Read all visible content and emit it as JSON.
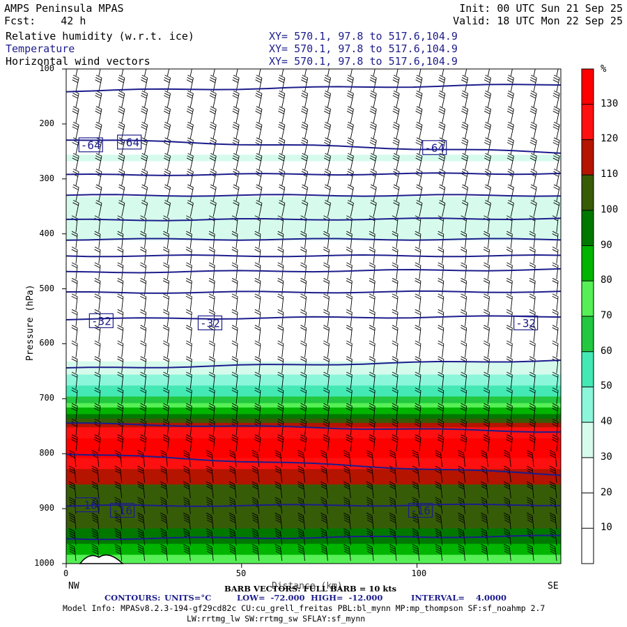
{
  "header": {
    "title": "AMPS Peninsula MPAS",
    "forecast": "Fcst:    42 h",
    "init": "Init: 00 UTC Sun 21 Sep 25",
    "valid": "Valid: 18 UTC Mon 22 Sep 25",
    "fields": [
      {
        "name": "Relative humidity (w.r.t. ice)",
        "xy": "XY= 570.1, 97.8 to 517.6,104.9"
      },
      {
        "name": "Temperature",
        "xy": "XY= 570.1, 97.8 to 517.6,104.9"
      },
      {
        "name": "Horizontal wind vectors",
        "xy": "XY= 570.1, 97.8 to 517.6,104.9"
      }
    ]
  },
  "colors": {
    "contour": "#1c1c8c",
    "bands": [
      "#ffffff",
      "#ffffff",
      "#ffffff",
      "#d6fbec",
      "#8cf6da",
      "#44e8b4",
      "#22c840",
      "#56f056",
      "#00b400",
      "#007800",
      "#375c08",
      "#b41400",
      "#ff1010",
      "#ff0000"
    ]
  },
  "chart_data": {
    "type": "heatmap",
    "subtype": "vertical cross-section",
    "ylabel": "Pressure (hPa)",
    "xlabel": "Distance (km)",
    "xlabel_left": "NW",
    "xlabel_right": "SE",
    "x_range": [
      0,
      141
    ],
    "y_range": [
      1000,
      100
    ],
    "y_ticks": [
      100,
      200,
      300,
      400,
      500,
      600,
      700,
      800,
      900,
      1000
    ],
    "x_ticks": [
      0,
      50,
      100
    ],
    "colorbar": {
      "unit": "%",
      "levels": [
        0,
        10,
        20,
        30,
        40,
        50,
        60,
        70,
        80,
        90,
        100,
        110,
        120,
        130,
        140
      ],
      "tick_labels": [
        10,
        20,
        30,
        40,
        50,
        60,
        70,
        80,
        90,
        100,
        110,
        120,
        130
      ]
    },
    "rh_profile": [
      {
        "p": 100,
        "rh": 5
      },
      {
        "p": 230,
        "rh": 12
      },
      {
        "p": 260,
        "rh": 32
      },
      {
        "p": 300,
        "rh": 22
      },
      {
        "p": 350,
        "rh": 35
      },
      {
        "p": 400,
        "rh": 36
      },
      {
        "p": 440,
        "rh": 18
      },
      {
        "p": 500,
        "rh": 30
      },
      {
        "p": 560,
        "rh": 22
      },
      {
        "p": 620,
        "rh": 25
      },
      {
        "p": 660,
        "rh": 42
      },
      {
        "p": 700,
        "rh": 62
      },
      {
        "p": 730,
        "rh": 92
      },
      {
        "p": 760,
        "rh": 128
      },
      {
        "p": 800,
        "rh": 135
      },
      {
        "p": 830,
        "rh": 118
      },
      {
        "p": 870,
        "rh": 105
      },
      {
        "p": 930,
        "rh": 102
      },
      {
        "p": 970,
        "rh": 88
      },
      {
        "p": 1000,
        "rh": 70
      }
    ],
    "temperature_contours": {
      "units": "°C",
      "low": -72.0,
      "high": -12.0,
      "interval": 4.0,
      "lines": [
        {
          "p_start": 140,
          "p_end": 128
        },
        {
          "p_start": 228,
          "p_end": 252
        },
        {
          "p_start": 293,
          "p_end": 290
        },
        {
          "p_start": 330,
          "p_end": 330
        },
        {
          "p_start": 375,
          "p_end": 372
        },
        {
          "p_start": 410,
          "p_end": 410
        },
        {
          "p_start": 440,
          "p_end": 440
        },
        {
          "p_start": 470,
          "p_end": 465
        },
        {
          "p_start": 507,
          "p_end": 505
        },
        {
          "p_start": 555,
          "p_end": 550
        },
        {
          "p_start": 645,
          "p_end": 630
        },
        {
          "p_start": 745,
          "p_end": 760
        },
        {
          "p_start": 800,
          "p_end": 838
        },
        {
          "p_start": 895,
          "p_end": 893
        },
        {
          "p_start": 955,
          "p_end": 950
        }
      ],
      "labels": [
        {
          "text": "-64",
          "x": 7,
          "p": 238
        },
        {
          "text": "-64",
          "x": 18,
          "p": 233
        },
        {
          "text": "-64",
          "x": 105,
          "p": 243
        },
        {
          "text": "-32",
          "x": 10,
          "p": 558
        },
        {
          "text": "-32",
          "x": 41,
          "p": 562
        },
        {
          "text": "-32",
          "x": 131,
          "p": 562
        },
        {
          "text": "-16",
          "x": 6,
          "p": 893
        },
        {
          "text": "-16",
          "x": 16,
          "p": 903
        },
        {
          "text": "-16",
          "x": 101,
          "p": 903
        }
      ]
    },
    "wind": {
      "columns": 22,
      "rows": 32,
      "barb_full": 10,
      "barb_unit": "kts"
    }
  },
  "footer": {
    "barb_text": "BARB VECTORS: FULL BARB = 10 kts",
    "contour_label": "CONTOURS:",
    "units": "UNITS=°C",
    "low": "LOW=  -72.000",
    "high": "HIGH=  -12.000",
    "interval": "INTERVAL=    4.0000",
    "model_info": "Model Info: MPASv8.2.3-194-gf29cd82c CU:cu_grell_freitas PBL:bl_mynn MP:mp_thompson SF:sf_noahmp 2.7",
    "model_info2": "LW:rrtmg_lw SW:rrtmg_sw SFLAY:sf_mynn"
  }
}
